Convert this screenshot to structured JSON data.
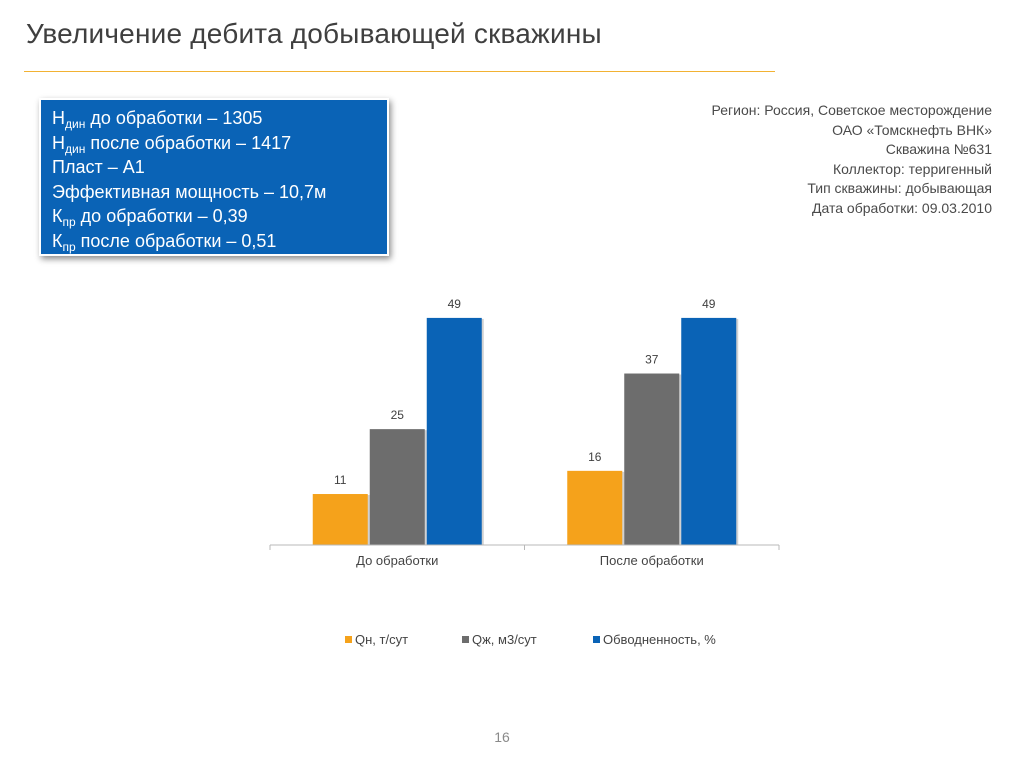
{
  "slide": {
    "title": "Увеличение дебита добывающей скважины",
    "page_number": "16"
  },
  "info_box": {
    "lines": [
      {
        "prefix": "Н",
        "sub": "дин",
        "text": " до обработки – 1305"
      },
      {
        "prefix": "Н",
        "sub": "дин",
        "text": " после обработки – 1417"
      },
      {
        "prefix": "Пласт – А1",
        "sub": "",
        "text": ""
      },
      {
        "prefix": "Эффективная мощность – 10,7м",
        "sub": "",
        "text": ""
      },
      {
        "prefix": "К",
        "sub": "пр",
        "text": " до обработки – 0,39"
      },
      {
        "prefix": "К",
        "sub": "пр",
        "text": " после обработки – 0,51"
      }
    ]
  },
  "meta": {
    "region": "Регион: Россия, Советское месторождение",
    "company": "ОАО «Томскнефть ВНК»",
    "well": "Скважина  №631",
    "collector": "Коллектор: терригенный",
    "well_type": "Тип скважины: добывающая",
    "date": "Дата обработки: 09.03.2010"
  },
  "chart_data": {
    "type": "bar",
    "title": "",
    "xlabel": "",
    "ylabel": "",
    "categories": [
      "До обработки",
      "После обработки"
    ],
    "series": [
      {
        "name": "Qн, т/сут",
        "color": "#f5a21b",
        "values": [
          11,
          16
        ]
      },
      {
        "name": "Qж, м3/сут",
        "color": "#6d6d6d",
        "values": [
          25,
          37
        ]
      },
      {
        "name": "Обводненность, %",
        "color": "#0a63b6",
        "values": [
          49,
          49
        ]
      }
    ],
    "ylim": [
      0,
      52
    ],
    "grid": false,
    "data_labels": true,
    "legend_position": "bottom"
  }
}
